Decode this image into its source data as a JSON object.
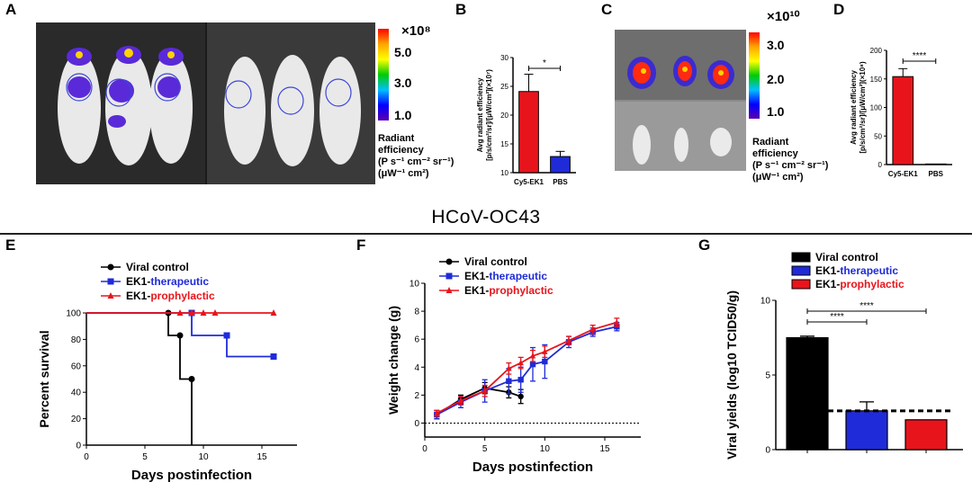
{
  "panels": {
    "A": "A",
    "B": "B",
    "C": "C",
    "D": "D",
    "E": "E",
    "F": "F",
    "G": "G"
  },
  "section_title": "HCoV-OC43",
  "colorbar_A": {
    "exponent": "×10⁸",
    "ticks": [
      "5.0",
      "3.0",
      "1.0"
    ],
    "legend": [
      "Radiant",
      "efficiency",
      "(P s⁻¹ cm⁻² sr⁻¹)",
      "(μW⁻¹ cm²)"
    ]
  },
  "colorbar_C": {
    "exponent": "×10¹⁰",
    "ticks": [
      "3.0",
      "2.0",
      "1.0"
    ],
    "legend": [
      "Radiant",
      "efficiency",
      "(P s⁻¹ cm⁻² sr⁻¹)",
      "(μW⁻¹ cm²)"
    ]
  },
  "chart_data": [
    {
      "id": "B",
      "type": "bar",
      "categories": [
        "Cy5-EK1",
        "PBS"
      ],
      "values": [
        24.1,
        12.8
      ],
      "errors": [
        3.0,
        0.9
      ],
      "colors": [
        "#e8141b",
        "#1f2bd8"
      ],
      "ylabel": [
        "Avg radiant efficiency",
        "[p/s/cm²/sr]/[μW/cm²](×10⁷)"
      ],
      "ylim": [
        10,
        30
      ],
      "yticks": [
        10,
        15,
        20,
        25,
        30
      ],
      "significance": "*"
    },
    {
      "id": "D",
      "type": "bar",
      "categories": [
        "Cy5-EK1",
        "PBS"
      ],
      "values": [
        154,
        1
      ],
      "errors": [
        14,
        0
      ],
      "colors": [
        "#e8141b",
        "#1f2bd8"
      ],
      "ylabel": [
        "Avg radiant efficiency",
        "[p/s/cm²/sr]/[μW/cm²](×10⁸)"
      ],
      "ylim": [
        0,
        200
      ],
      "yticks": [
        0,
        50,
        100,
        150,
        200
      ],
      "significance": "****"
    },
    {
      "id": "E",
      "type": "line",
      "title": "",
      "xlabel": "Days postinfection",
      "ylabel": "Percent survival",
      "xlim": [
        0,
        18
      ],
      "ylim": [
        0,
        100
      ],
      "xticks": [
        0,
        5,
        10,
        15
      ],
      "yticks": [
        0,
        20,
        40,
        60,
        80,
        100
      ],
      "series": [
        {
          "name": "Viral control",
          "color": "#000000",
          "marker": "circle",
          "x": [
            0,
            7,
            7,
            8,
            8,
            9,
            9
          ],
          "y": [
            100,
            100,
            83,
            83,
            50,
            50,
            0
          ]
        },
        {
          "name": "EK1-therapeutic",
          "color": "#1f2bd8",
          "marker": "square",
          "x": [
            0,
            9,
            9,
            12,
            12,
            16
          ],
          "y": [
            100,
            100,
            83,
            83,
            67,
            67
          ]
        },
        {
          "name": "EK1-prophylactic",
          "color": "#e8141b",
          "marker": "triangle",
          "x": [
            0,
            16
          ],
          "y": [
            100,
            100
          ],
          "censor_x": [
            8,
            9,
            10,
            11,
            16
          ]
        }
      ]
    },
    {
      "id": "F",
      "type": "line",
      "xlabel": "Days postinfection",
      "ylabel": "Weight change (g)",
      "xlim": [
        0,
        18
      ],
      "ylim": [
        -1,
        10
      ],
      "xticks": [
        0,
        5,
        10,
        15
      ],
      "yticks": [
        0,
        2,
        4,
        6,
        8,
        10
      ],
      "series": [
        {
          "name": "Viral control",
          "color": "#000000",
          "marker": "circle",
          "x": [
            1,
            3,
            5,
            7,
            8
          ],
          "y": [
            0.6,
            1.7,
            2.5,
            2.2,
            1.9
          ],
          "err": [
            0.3,
            0.3,
            0.4,
            0.4,
            0.5
          ]
        },
        {
          "name": "EK1-therapeutic",
          "color": "#1f2bd8",
          "marker": "square",
          "x": [
            1,
            3,
            5,
            7,
            8,
            9,
            10,
            12,
            14,
            16
          ],
          "y": [
            0.6,
            1.5,
            2.3,
            3.0,
            3.1,
            4.2,
            4.4,
            5.8,
            6.5,
            6.9
          ],
          "err": [
            0.3,
            0.4,
            0.8,
            0.9,
            0.9,
            1.2,
            1.2,
            0.4,
            0.3,
            0.3
          ]
        },
        {
          "name": "EK1-prophylactic",
          "color": "#e8141b",
          "marker": "triangle",
          "x": [
            1,
            3,
            5,
            7,
            8,
            9,
            10,
            12,
            14,
            16
          ],
          "y": [
            0.7,
            1.6,
            2.3,
            3.9,
            4.3,
            4.8,
            5.1,
            5.9,
            6.7,
            7.2
          ],
          "err": [
            0.2,
            0.3,
            0.4,
            0.4,
            0.4,
            0.4,
            0.4,
            0.3,
            0.3,
            0.3
          ]
        }
      ]
    },
    {
      "id": "G",
      "type": "bar",
      "ylabel": "Viral yields (log10 TCID50/g)",
      "ylim": [
        0,
        10
      ],
      "yticks": [
        0,
        5,
        10
      ],
      "detection_limit": 2.6,
      "series": [
        {
          "name": "Viral control",
          "color": "#000000",
          "value": 7.5,
          "err": 0.1
        },
        {
          "name": "EK1-therapeutic",
          "color": "#1f2bd8",
          "value": 2.6,
          "err": 0.6
        },
        {
          "name": "EK1-prophylactic",
          "color": "#e8141b",
          "value": 2.0,
          "err": 0
        }
      ],
      "significance": [
        "****",
        "****"
      ]
    }
  ]
}
